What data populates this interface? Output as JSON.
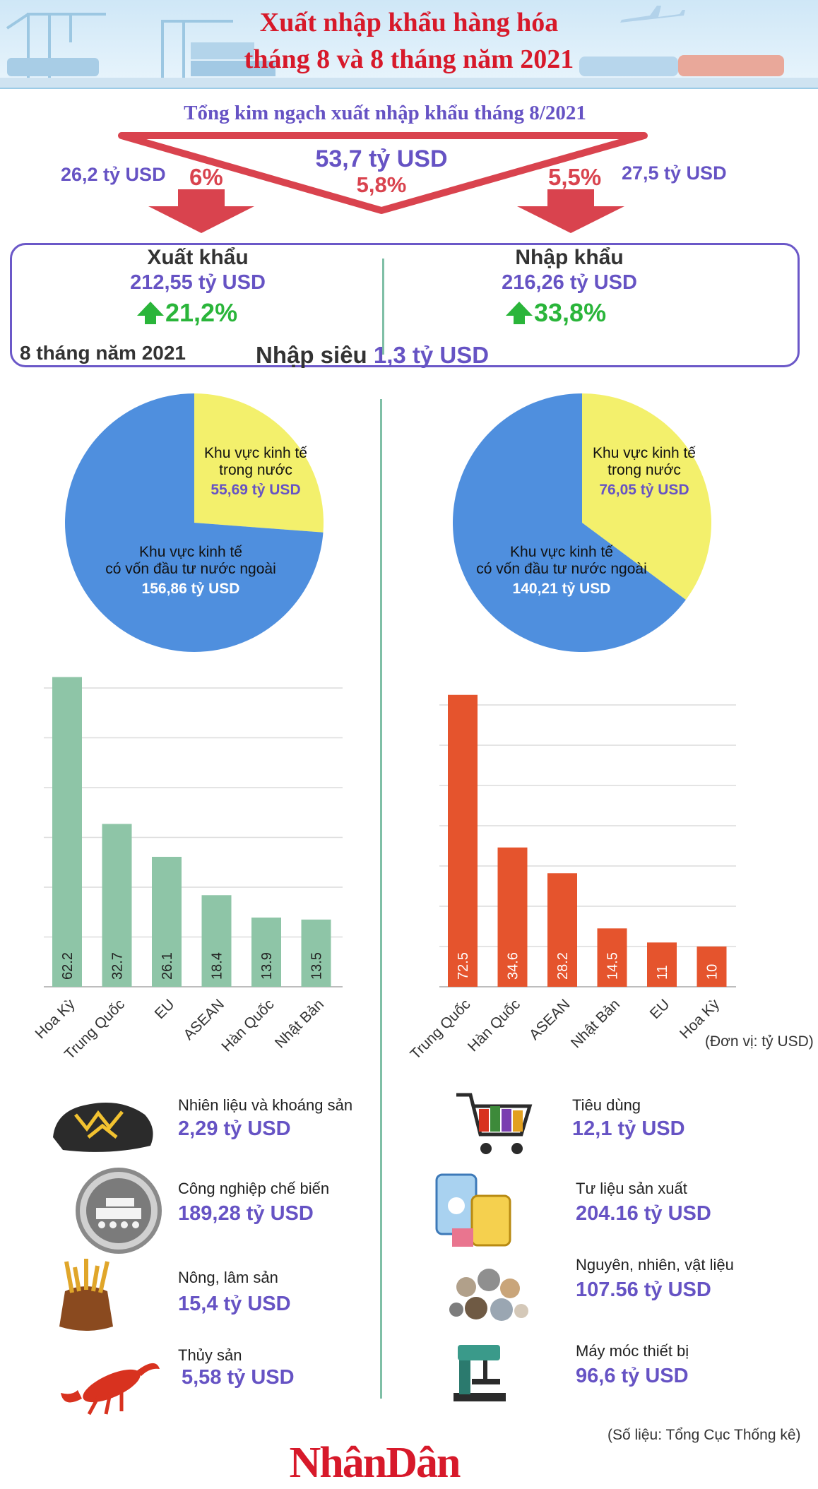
{
  "header": {
    "title_line1": "Xuất nhập khẩu hàng hóa",
    "title_line2": "tháng 8 và 8 tháng năm 2021"
  },
  "month": {
    "heading": "Tổng kim ngạch xuất nhập khẩu tháng 8/2021",
    "total": "53,7 tỷ USD",
    "total_change": "5,8%",
    "export_value": "26,2 tỷ USD",
    "export_change": "6%",
    "import_value": "27,5 tỷ USD",
    "import_change": "5,5%"
  },
  "summary": {
    "export_label": "Xuất khẩu",
    "export_value": "212,55 tỷ USD",
    "export_growth": "21,2%",
    "import_label": "Nhập khẩu",
    "import_value": "216,26 tỷ USD",
    "import_growth": "33,8%",
    "period": "8 tháng năm 2021",
    "deficit_label": "Nhập siêu",
    "deficit_value": "1,3 tỷ USD"
  },
  "colors": {
    "accent_purple": "#6653c4",
    "accent_red": "#d9434e",
    "growth_green": "#2ab53a",
    "pie_blue": "#4f8fde",
    "pie_yellow": "#f3f06c",
    "bar_green": "#8ec5a7",
    "bar_orange": "#e5542d"
  },
  "chart_data": [
    {
      "type": "pie",
      "slices": [
        {
          "label_line1": "Khu vực kinh tế",
          "label_line2": "trong nước",
          "value_text": "55,69 tỷ USD",
          "value": 55.69
        },
        {
          "label_line1": "Khu vực kinh tế",
          "label_line2": "có vốn đầu tư nước ngoài",
          "value_text": "156,86 tỷ USD",
          "value": 156.86
        }
      ]
    },
    {
      "type": "pie",
      "slices": [
        {
          "label_line1": "Khu vực kinh tế",
          "label_line2": "trong nước",
          "value_text": "76,05 tỷ USD",
          "value": 76.05
        },
        {
          "label_line1": "Khu vực kinh tế",
          "label_line2": "có vốn đầu tư nước ngoài",
          "value_text": "140,21 tỷ USD",
          "value": 140.21
        }
      ]
    },
    {
      "type": "bar",
      "categories": [
        "Hoa Kỳ",
        "Trung Quốc",
        "EU",
        "ASEAN",
        "Hàn Quốc",
        "Nhật Bản"
      ],
      "values": [
        62.2,
        32.7,
        26.1,
        18.4,
        13.9,
        13.5
      ],
      "value_labels": [
        "62.2",
        "32.7",
        "26.1",
        "18.4",
        "13.9",
        "13.5"
      ],
      "ylim": [
        0,
        60
      ],
      "grid": true
    },
    {
      "type": "bar",
      "categories": [
        "Trung Quốc",
        "Hàn Quốc",
        "ASEAN",
        "Nhật Bản",
        "EU",
        "Hoa Kỳ"
      ],
      "values": [
        72.5,
        34.6,
        28.2,
        14.5,
        11,
        10
      ],
      "value_labels": [
        "72.5",
        "34.6",
        "28.2",
        "14.5",
        "11",
        "10"
      ],
      "ylim": [
        0,
        70
      ],
      "grid": true
    }
  ],
  "unit_note": "(Đơn vị: tỷ USD)",
  "export_groups": [
    {
      "name": "Nhiên liệu và khoáng sản",
      "value": "2,29 tỷ USD",
      "icon": "coal-icon"
    },
    {
      "name": "Công nghiệp chế biến",
      "value": "189,28 tỷ USD",
      "icon": "factory-icon"
    },
    {
      "name": "Nông, lâm sản",
      "value": "15,4 tỷ USD",
      "icon": "grain-sack-icon"
    },
    {
      "name": "Thủy sản",
      "value": "5,58 tỷ USD",
      "icon": "lobster-icon"
    }
  ],
  "import_groups": [
    {
      "name": "Tiêu dùng",
      "value": "12,1 tỷ USD",
      "icon": "shopping-cart-icon"
    },
    {
      "name": "Tư liệu sản xuất",
      "value": "204.16 tỷ USD",
      "icon": "barrels-icon"
    },
    {
      "name": "Nguyên, nhiên, vật liệu",
      "value": "107.56 tỷ USD",
      "icon": "raw-materials-icon"
    },
    {
      "name": "Máy móc thiết bị",
      "value": "96,6 tỷ USD",
      "icon": "drill-press-icon"
    }
  ],
  "footer": {
    "source": "(Số liệu: Tổng Cục Thống kê)",
    "logo": "NhânDân"
  }
}
